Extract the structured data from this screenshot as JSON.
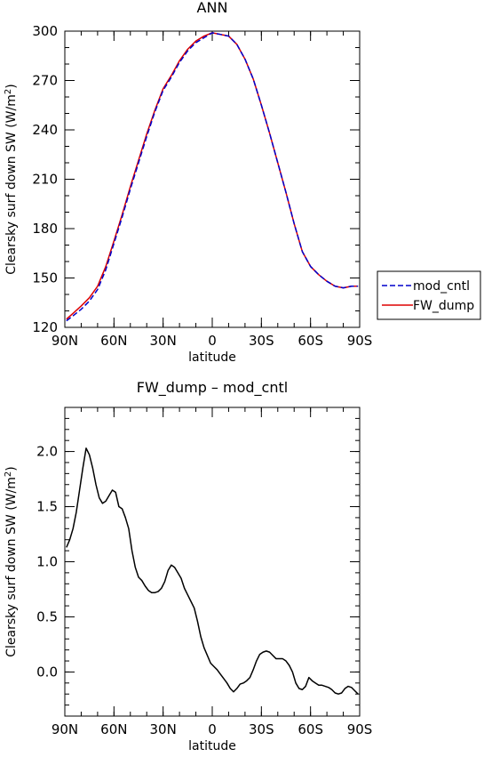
{
  "chart_data": [
    {
      "type": "line",
      "title": "ANN",
      "xlabel": "latitude",
      "ylabel": "Clearsky surf down SW (W/m²)",
      "ylabel_parts": {
        "main": "Clearsky surf down SW (W/m",
        "sup": "2",
        "close": ")"
      },
      "xlim": [
        -90,
        90
      ],
      "ylim": [
        120,
        300
      ],
      "x_ticks": [
        -90,
        -60,
        -30,
        0,
        30,
        60,
        90
      ],
      "x_tick_labels": [
        "90N",
        "60N",
        "30N",
        "0",
        "30S",
        "60S",
        "90S"
      ],
      "y_ticks": [
        120,
        150,
        180,
        210,
        240,
        270,
        300
      ],
      "y_tick_labels": [
        "120",
        "150",
        "180",
        "210",
        "240",
        "270",
        "300"
      ],
      "legend": "right",
      "series": [
        {
          "name": "mod_cntl",
          "color": "#0000cc",
          "dash": "dashed",
          "x": [
            -89,
            -85,
            -80,
            -75,
            -70,
            -65,
            -60,
            -55,
            -50,
            -45,
            -40,
            -35,
            -30,
            -25,
            -20,
            -15,
            -10,
            -5,
            0,
            5,
            10,
            15,
            20,
            25,
            30,
            35,
            40,
            45,
            50,
            55,
            60,
            65,
            70,
            75,
            80,
            85,
            89
          ],
          "y": [
            124,
            127,
            131,
            136,
            143,
            155,
            171,
            187,
            204,
            220,
            236,
            251,
            264,
            272,
            281,
            288,
            293,
            296,
            299,
            298,
            297,
            292,
            283,
            271,
            255,
            238,
            220,
            202,
            183,
            166,
            157,
            152,
            148,
            145,
            144,
            145,
            145
          ]
        },
        {
          "name": "FW_dump",
          "color": "#dd0000",
          "dash": "solid",
          "x": [
            -89,
            -85,
            -80,
            -75,
            -70,
            -65,
            -60,
            -55,
            -50,
            -45,
            -40,
            -35,
            -30,
            -25,
            -20,
            -15,
            -10,
            -5,
            0,
            5,
            10,
            15,
            20,
            25,
            30,
            35,
            40,
            45,
            50,
            55,
            60,
            65,
            70,
            75,
            80,
            85,
            89
          ],
          "y": [
            125,
            128.5,
            133,
            138,
            145,
            157,
            172.5,
            188.5,
            205.5,
            221.5,
            237.5,
            252,
            265,
            273,
            282,
            289,
            294,
            297,
            299,
            298,
            297,
            292,
            283,
            271,
            255,
            238,
            220,
            202,
            183,
            166,
            157,
            152,
            148,
            145,
            144,
            145,
            145
          ]
        }
      ]
    },
    {
      "type": "line",
      "title": "FW_dump – mod_cntl",
      "xlabel": "latitude",
      "ylabel": "Clearsky surf down SW (W/m²)",
      "ylabel_parts": {
        "main": "Clearsky surf down SW (W/m",
        "sup": "2",
        "close": ")"
      },
      "xlim": [
        -90,
        90
      ],
      "ylim": [
        -0.4,
        2.4
      ],
      "x_ticks": [
        -90,
        -60,
        -30,
        0,
        30,
        60,
        90
      ],
      "x_tick_labels": [
        "90N",
        "60N",
        "30N",
        "0",
        "30S",
        "60S",
        "90S"
      ],
      "y_ticks": [
        0.0,
        0.5,
        1.0,
        1.5,
        2.0
      ],
      "y_tick_labels": [
        "0.0",
        "0.5",
        "1.0",
        "1.5",
        "2.0"
      ],
      "series": [
        {
          "color": "#000000",
          "dash": "solid",
          "x": [
            -89,
            -87,
            -85,
            -83,
            -81,
            -79,
            -77,
            -75,
            -73,
            -71,
            -69,
            -67,
            -65,
            -63,
            -61,
            -59,
            -57,
            -55,
            -53,
            -51,
            -49,
            -47,
            -45,
            -43,
            -41,
            -39,
            -37,
            -35,
            -33,
            -31,
            -29,
            -27,
            -25,
            -23,
            -21,
            -19,
            -17,
            -15,
            -13,
            -11,
            -9,
            -7,
            -5,
            -3,
            -1,
            1,
            3,
            5,
            7,
            9,
            11,
            13,
            15,
            17,
            19,
            21,
            23,
            25,
            27,
            29,
            31,
            33,
            35,
            37,
            39,
            41,
            43,
            45,
            47,
            49,
            51,
            53,
            55,
            57,
            59,
            61,
            63,
            65,
            67,
            69,
            71,
            73,
            75,
            77,
            79,
            81,
            83,
            85,
            87,
            89
          ],
          "y": [
            1.13,
            1.2,
            1.3,
            1.45,
            1.65,
            1.85,
            2.03,
            1.97,
            1.85,
            1.7,
            1.58,
            1.53,
            1.55,
            1.6,
            1.65,
            1.63,
            1.5,
            1.48,
            1.4,
            1.3,
            1.1,
            0.95,
            0.86,
            0.83,
            0.78,
            0.74,
            0.72,
            0.72,
            0.73,
            0.76,
            0.82,
            0.92,
            0.97,
            0.95,
            0.9,
            0.85,
            0.76,
            0.7,
            0.64,
            0.58,
            0.46,
            0.32,
            0.22,
            0.15,
            0.08,
            0.05,
            0.02,
            -0.02,
            -0.06,
            -0.1,
            -0.15,
            -0.18,
            -0.15,
            -0.11,
            -0.1,
            -0.08,
            -0.05,
            0.02,
            0.1,
            0.16,
            0.18,
            0.19,
            0.18,
            0.15,
            0.12,
            0.12,
            0.12,
            0.1,
            0.06,
            0.0,
            -0.1,
            -0.15,
            -0.16,
            -0.13,
            -0.05,
            -0.08,
            -0.1,
            -0.12,
            -0.12,
            -0.13,
            -0.14,
            -0.16,
            -0.19,
            -0.2,
            -0.19,
            -0.15,
            -0.13,
            -0.14,
            -0.17,
            -0.2
          ]
        }
      ]
    }
  ]
}
